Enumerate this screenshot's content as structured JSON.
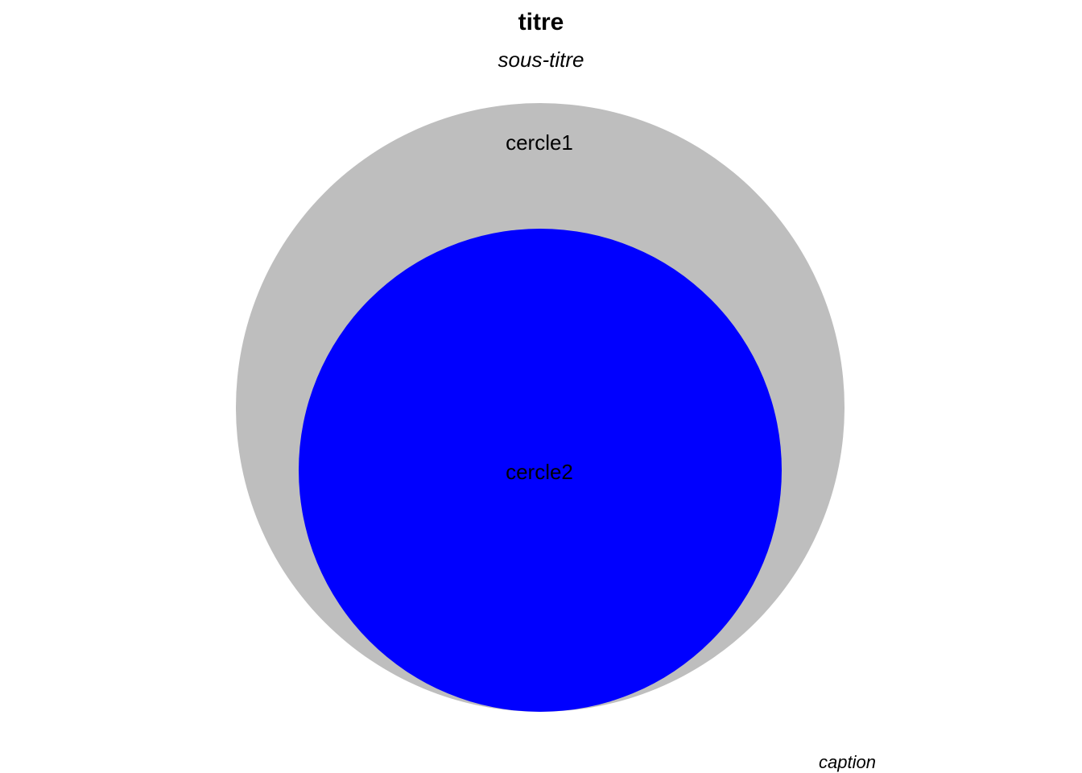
{
  "title": "titre",
  "subtitle": "sous-titre",
  "caption": "caption",
  "circles": [
    {
      "label": "cercle1",
      "color": "#bebebe"
    },
    {
      "label": "cercle2",
      "color": "#0000ff"
    }
  ]
}
